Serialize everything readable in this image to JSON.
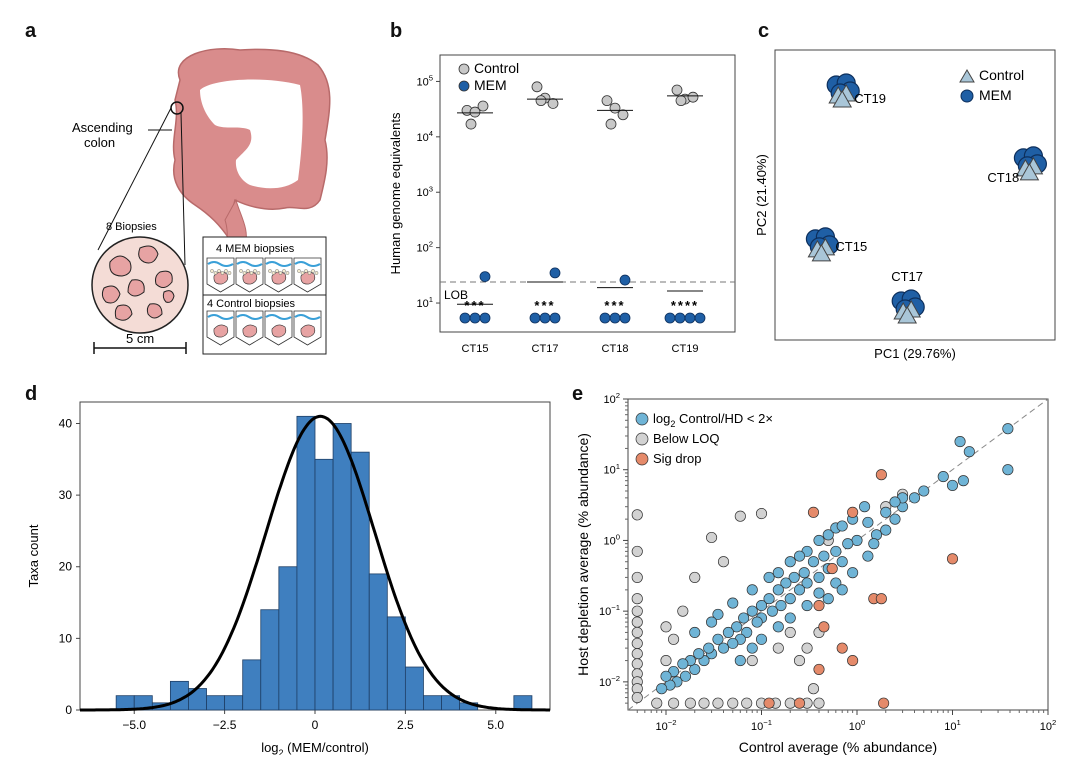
{
  "panel_labels": {
    "a": "a",
    "b": "b",
    "c": "c",
    "d": "d",
    "e": "e"
  },
  "panel_a": {
    "ascending_label_line1": "Ascending",
    "ascending_label_line2": "colon",
    "biopsies_label": "8 Biopsies",
    "scale_label": "5 cm",
    "mem_box_label": "4 MEM biopsies",
    "control_box_label": "4 Control biopsies",
    "colors": {
      "colon": "#d98c8c",
      "tissue": "#e7a3a3",
      "circle": "#f4dcd6",
      "wave": "#3aa0d8"
    }
  },
  "chart_data": [
    {
      "id": "b",
      "type": "scatter",
      "ylabel": "Human genome equivalents",
      "yscale": "log",
      "ylim": [
        3,
        300000
      ],
      "yticks": [
        {
          "v": 10,
          "base": "10",
          "exp": "1"
        },
        {
          "v": 100,
          "base": "10",
          "exp": "2"
        },
        {
          "v": 1000,
          "base": "10",
          "exp": "3"
        },
        {
          "v": 10000,
          "base": "10",
          "exp": "4"
        },
        {
          "v": 100000,
          "base": "10",
          "exp": "5"
        }
      ],
      "categories": [
        "CT15",
        "CT17",
        "CT18",
        "CT19"
      ],
      "lob_label": "LOB",
      "lob_value": 24,
      "legend": [
        {
          "name": "Control",
          "color": "#c8c8c8"
        },
        {
          "name": "MEM",
          "color": "#1f5fa5"
        }
      ],
      "series": [
        {
          "name": "Control",
          "color": "#c8c8c8",
          "points": [
            {
              "cat": 0,
              "y": [
                30000,
                28000,
                36000,
                17000
              ],
              "mean": 27000
            },
            {
              "cat": 1,
              "y": [
                80000,
                50000,
                40000,
                45000
              ],
              "mean": 48000
            },
            {
              "cat": 2,
              "y": [
                45000,
                33000,
                25000,
                17000
              ],
              "mean": 30000
            },
            {
              "cat": 3,
              "y": [
                70000,
                48000,
                52000,
                45000
              ],
              "mean": 55000
            }
          ]
        },
        {
          "name": "MEM",
          "color": "#1f5fa5",
          "points": [
            {
              "cat": 0,
              "y": [
                30
              ],
              "below_lob": 3,
              "mean": 9.5
            },
            {
              "cat": 1,
              "y": [
                35
              ],
              "below_lob": 3,
              "mean": 24
            },
            {
              "cat": 2,
              "y": [
                26
              ],
              "below_lob": 3,
              "mean": 19
            },
            {
              "cat": 3,
              "y": [],
              "below_lob": 4,
              "mean": 16.5
            }
          ]
        }
      ],
      "stars": [
        "***",
        "***",
        "***",
        "****"
      ]
    },
    {
      "id": "c",
      "type": "scatter",
      "title": "",
      "xlabel": "PC1 (29.76%)",
      "ylabel": "PC2 (21.40%)",
      "legend": [
        {
          "name": "Control",
          "marker": "triangle",
          "color": "#a9c6d8"
        },
        {
          "name": "MEM",
          "marker": "circle",
          "color": "#1f5fa5"
        }
      ],
      "clusters": [
        {
          "label": "CT19",
          "x": 0.22,
          "y": 0.9
        },
        {
          "label": "CT18",
          "x": 0.94,
          "y": 0.63
        },
        {
          "label": "CT15",
          "x": 0.14,
          "y": 0.33
        },
        {
          "label": "CT17",
          "x": 0.47,
          "y": 0.1
        }
      ]
    },
    {
      "id": "d",
      "type": "bar",
      "xlabel_base": "log",
      "xlabel_sub": "2",
      "xlabel_rest": " (MEM/control)",
      "ylabel": "Taxa count",
      "xlim": [
        -6.5,
        6.5
      ],
      "ylim": [
        0,
        43
      ],
      "xticks": [
        {
          "v": -5,
          "label": "−5.0"
        },
        {
          "v": -2.5,
          "label": "−2.5"
        },
        {
          "v": 0,
          "label": "0"
        },
        {
          "v": 2.5,
          "label": "2.5"
        },
        {
          "v": 5,
          "label": "5.0"
        }
      ],
      "yticks": [
        0,
        10,
        20,
        30,
        40
      ],
      "bin_width": 0.5,
      "bin_starts": [
        -5.5,
        -5.0,
        -4.5,
        -4.0,
        -3.5,
        -3.0,
        -2.5,
        -2.0,
        -1.5,
        -1.0,
        -0.5,
        0.0,
        0.5,
        1.0,
        1.5,
        2.0,
        2.5,
        3.0,
        3.5,
        4.0,
        4.5,
        5.0,
        5.5
      ],
      "values": [
        2,
        2,
        1,
        4,
        3,
        2,
        2,
        7,
        14,
        20,
        41,
        35,
        40,
        36,
        19,
        13,
        6,
        2,
        2,
        1,
        0,
        0,
        2
      ],
      "fit": {
        "mean": 0.15,
        "sd": 1.5,
        "peak": 41
      },
      "bar_color": "#3f7fbf"
    },
    {
      "id": "e",
      "type": "scatter",
      "xlabel": "Control average (% abundance)",
      "ylabel": "Host depletion average (% abundance)",
      "xscale": "log",
      "yscale": "log",
      "xlim": [
        0.004,
        100
      ],
      "ylim": [
        0.004,
        100
      ],
      "xticks": [
        {
          "v": 0.01,
          "base": "10",
          "exp": "−2"
        },
        {
          "v": 0.1,
          "base": "10",
          "exp": "−1"
        },
        {
          "v": 1,
          "base": "10",
          "exp": "0"
        },
        {
          "v": 10,
          "base": "10",
          "exp": "1"
        },
        {
          "v": 100,
          "base": "10",
          "exp": "2"
        }
      ],
      "yticks": [
        {
          "v": 0.01,
          "base": "10",
          "exp": "−2"
        },
        {
          "v": 0.1,
          "base": "10",
          "exp": "−1"
        },
        {
          "v": 1,
          "base": "10",
          "exp": "0"
        },
        {
          "v": 10,
          "base": "10",
          "exp": "1"
        },
        {
          "v": 100,
          "base": "10",
          "exp": "2"
        }
      ],
      "legend": [
        {
          "base": "log",
          "sub": "2",
          "rest": " Control/HD < 2×",
          "color": "#6fb4d6"
        },
        {
          "base": "Below LOQ",
          "sub": "",
          "rest": "",
          "color": "#d2d2d2"
        },
        {
          "base": "Sig drop",
          "sub": "",
          "rest": "",
          "color": "#e58a6a"
        }
      ],
      "series": [
        {
          "name": "Control/HD < 2×",
          "color": "#6fb4d6",
          "points": [
            [
              38,
              38
            ],
            [
              38,
              10
            ],
            [
              12,
              25
            ],
            [
              15,
              18
            ],
            [
              8,
              8
            ],
            [
              10,
              6
            ],
            [
              13,
              7
            ],
            [
              5,
              5
            ],
            [
              4,
              4
            ],
            [
              3,
              3
            ],
            [
              2.5,
              2
            ],
            [
              2,
              2.5
            ],
            [
              1.6,
              1.2
            ],
            [
              1.3,
              1.8
            ],
            [
              1,
              1
            ],
            [
              0.8,
              0.9
            ],
            [
              0.7,
              0.5
            ],
            [
              0.6,
              0.7
            ],
            [
              0.5,
              0.4
            ],
            [
              0.45,
              0.6
            ],
            [
              0.4,
              0.3
            ],
            [
              0.35,
              0.5
            ],
            [
              0.3,
              0.25
            ],
            [
              0.28,
              0.35
            ],
            [
              0.25,
              0.2
            ],
            [
              0.22,
              0.3
            ],
            [
              0.2,
              0.15
            ],
            [
              0.18,
              0.25
            ],
            [
              0.16,
              0.12
            ],
            [
              0.15,
              0.2
            ],
            [
              0.13,
              0.1
            ],
            [
              0.12,
              0.15
            ],
            [
              0.1,
              0.08
            ],
            [
              0.1,
              0.12
            ],
            [
              0.09,
              0.07
            ],
            [
              0.08,
              0.1
            ],
            [
              0.07,
              0.05
            ],
            [
              0.065,
              0.08
            ],
            [
              0.06,
              0.04
            ],
            [
              0.055,
              0.06
            ],
            [
              0.05,
              0.035
            ],
            [
              0.045,
              0.05
            ],
            [
              0.04,
              0.03
            ],
            [
              0.035,
              0.04
            ],
            [
              0.03,
              0.025
            ],
            [
              0.028,
              0.03
            ],
            [
              0.025,
              0.02
            ],
            [
              0.022,
              0.025
            ],
            [
              0.02,
              0.015
            ],
            [
              0.018,
              0.02
            ],
            [
              0.016,
              0.012
            ],
            [
              0.015,
              0.018
            ],
            [
              0.013,
              0.01
            ],
            [
              0.012,
              0.014
            ],
            [
              0.011,
              0.009
            ],
            [
              0.01,
              0.012
            ],
            [
              0.009,
              0.008
            ],
            [
              0.5,
              1.2
            ],
            [
              0.9,
              2
            ],
            [
              1.2,
              3
            ],
            [
              2,
              1.4
            ],
            [
              3,
              4
            ],
            [
              0.3,
              0.7
            ],
            [
              0.6,
              1.5
            ],
            [
              0.15,
              0.35
            ],
            [
              0.25,
              0.6
            ],
            [
              0.4,
              1
            ],
            [
              0.7,
              1.6
            ],
            [
              1.5,
              0.9
            ],
            [
              2.5,
              3.5
            ],
            [
              0.08,
              0.2
            ],
            [
              0.12,
              0.3
            ],
            [
              0.2,
              0.5
            ],
            [
              0.035,
              0.09
            ],
            [
              0.05,
              0.13
            ],
            [
              0.06,
              0.02
            ],
            [
              0.08,
              0.03
            ],
            [
              0.1,
              0.04
            ],
            [
              0.15,
              0.06
            ],
            [
              0.2,
              0.08
            ],
            [
              0.3,
              0.12
            ],
            [
              0.4,
              0.18
            ],
            [
              0.6,
              0.25
            ],
            [
              0.9,
              0.35
            ],
            [
              1.3,
              0.6
            ],
            [
              0.02,
              0.05
            ],
            [
              0.03,
              0.07
            ],
            [
              0.7,
              0.2
            ],
            [
              0.5,
              0.15
            ]
          ]
        },
        {
          "name": "Below LOQ",
          "color": "#d2d2d2",
          "points": [
            [
              0.005,
              2.3
            ],
            [
              0.005,
              0.7
            ],
            [
              0.005,
              0.3
            ],
            [
              0.005,
              0.15
            ],
            [
              0.005,
              0.1
            ],
            [
              0.005,
              0.07
            ],
            [
              0.005,
              0.05
            ],
            [
              0.005,
              0.035
            ],
            [
              0.005,
              0.025
            ],
            [
              0.005,
              0.018
            ],
            [
              0.005,
              0.013
            ],
            [
              0.005,
              0.01
            ],
            [
              0.005,
              0.008
            ],
            [
              0.005,
              0.006
            ],
            [
              0.008,
              0.005
            ],
            [
              0.012,
              0.005
            ],
            [
              0.018,
              0.005
            ],
            [
              0.025,
              0.005
            ],
            [
              0.035,
              0.005
            ],
            [
              0.05,
              0.005
            ],
            [
              0.07,
              0.005
            ],
            [
              0.1,
              0.005
            ],
            [
              0.14,
              0.005
            ],
            [
              0.2,
              0.005
            ],
            [
              0.3,
              0.005
            ],
            [
              0.4,
              0.005
            ],
            [
              0.06,
              2.2
            ],
            [
              0.1,
              2.4
            ],
            [
              0.03,
              1.1
            ],
            [
              0.04,
              0.5
            ],
            [
              0.02,
              0.3
            ],
            [
              0.015,
              0.1
            ],
            [
              0.01,
              0.06
            ],
            [
              0.2,
              0.05
            ],
            [
              0.3,
              0.03
            ],
            [
              0.25,
              0.02
            ],
            [
              0.15,
              0.03
            ],
            [
              0.4,
              0.05
            ],
            [
              0.35,
              0.008
            ],
            [
              0.5,
              1
            ],
            [
              3,
              4.5
            ],
            [
              2,
              3
            ],
            [
              0.08,
              0.02
            ],
            [
              0.012,
              0.04
            ],
            [
              0.01,
              0.02
            ]
          ]
        },
        {
          "name": "Sig drop",
          "color": "#e58a6a",
          "points": [
            [
              10,
              0.55
            ],
            [
              1.8,
              8.5
            ],
            [
              0.9,
              2.5
            ],
            [
              1.5,
              0.15
            ],
            [
              1.8,
              0.15
            ],
            [
              0.55,
              0.4
            ],
            [
              0.4,
              0.12
            ],
            [
              0.45,
              0.06
            ],
            [
              0.7,
              0.03
            ],
            [
              0.9,
              0.02
            ],
            [
              0.25,
              0.005
            ],
            [
              1.9,
              0.005
            ],
            [
              0.12,
              0.005
            ],
            [
              0.4,
              0.015
            ],
            [
              0.35,
              2.5
            ]
          ]
        }
      ]
    }
  ]
}
